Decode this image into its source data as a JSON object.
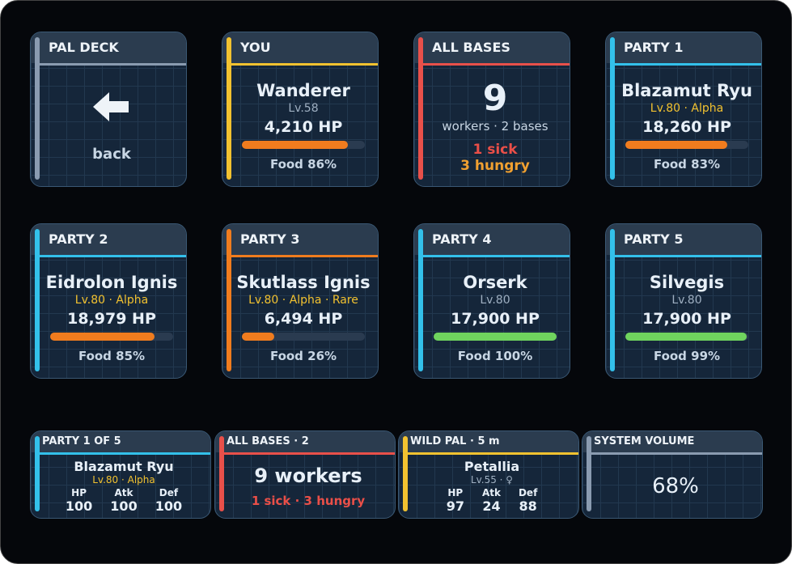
{
  "keys": [
    {
      "header": "PAL DECK",
      "accent": "#8a9bb0",
      "action": "back"
    },
    {
      "header": "YOU",
      "accent": "#f2c230",
      "name": "Wanderer",
      "sub": "Lv.58",
      "sub_color": "#9fb0c2",
      "hp": "4,210 HP",
      "food": 86,
      "food_text": "Food 86%",
      "bar_color": "#f07c1e"
    },
    {
      "header": "ALL BASES",
      "accent": "#e8504a",
      "big": "9",
      "caption": "workers · 2 bases",
      "alert": "1 sick",
      "warn": "3 hungry"
    },
    {
      "header": "PARTY 1",
      "accent": "#33c0ea",
      "name": "Blazamut Ryu",
      "sub": "Lv.80 · Alpha",
      "sub_color": "#f2c230",
      "hp": "18,260 HP",
      "food": 83,
      "food_text": "Food 83%",
      "bar_color": "#f07c1e"
    },
    {
      "header": "PARTY 2",
      "accent": "#33c0ea",
      "name": "Eidrolon Ignis",
      "sub": "Lv.80 · Alpha",
      "sub_color": "#f2c230",
      "hp": "18,979 HP",
      "food": 85,
      "food_text": "Food 85%",
      "bar_color": "#f07c1e"
    },
    {
      "header": "PARTY 3",
      "accent": "#f07c1e",
      "name": "Skutlass Ignis",
      "sub": "Lv.80 · Alpha · Rare",
      "sub_color": "#f2c230",
      "hp": "6,494 HP",
      "food": 26,
      "food_text": "Food 26%",
      "bar_color": "#f07c1e"
    },
    {
      "header": "PARTY 4",
      "accent": "#33c0ea",
      "name": "Orserk",
      "sub": "Lv.80",
      "sub_color": "#9fb0c2",
      "hp": "17,900 HP",
      "food": 100,
      "food_text": "Food 100%",
      "bar_color": "#6fd45e"
    },
    {
      "header": "PARTY 5",
      "accent": "#33c0ea",
      "name": "Silvegis",
      "sub": "Lv.80",
      "sub_color": "#9fb0c2",
      "hp": "17,900 HP",
      "food": 99,
      "food_text": "Food 99%",
      "bar_color": "#6fd45e"
    }
  ],
  "strip": [
    {
      "header": "PARTY 1 OF 5",
      "accent": "#33c0ea",
      "name": "Blazamut Ryu",
      "sub": "Lv.80 · Alpha",
      "sub_color": "#f2c230",
      "stats": [
        {
          "label": "HP",
          "value": "100"
        },
        {
          "label": "Atk",
          "value": "100"
        },
        {
          "label": "Def",
          "value": "100"
        }
      ]
    },
    {
      "header": "ALL BASES · 2",
      "accent": "#e8504a",
      "big": "9 workers",
      "alert": "1 sick · 3 hungry"
    },
    {
      "header": "WILD PAL · 5 m",
      "accent": "#f2c230",
      "name": "Petallia",
      "sub": "Lv.55 · ♀",
      "sub_color": "#9fb0c2",
      "stats": [
        {
          "label": "HP",
          "value": "97"
        },
        {
          "label": "Atk",
          "value": "24"
        },
        {
          "label": "Def",
          "value": "88"
        }
      ]
    },
    {
      "header": "SYSTEM VOLUME",
      "accent": "#8a9bb0",
      "big": "68%"
    }
  ]
}
